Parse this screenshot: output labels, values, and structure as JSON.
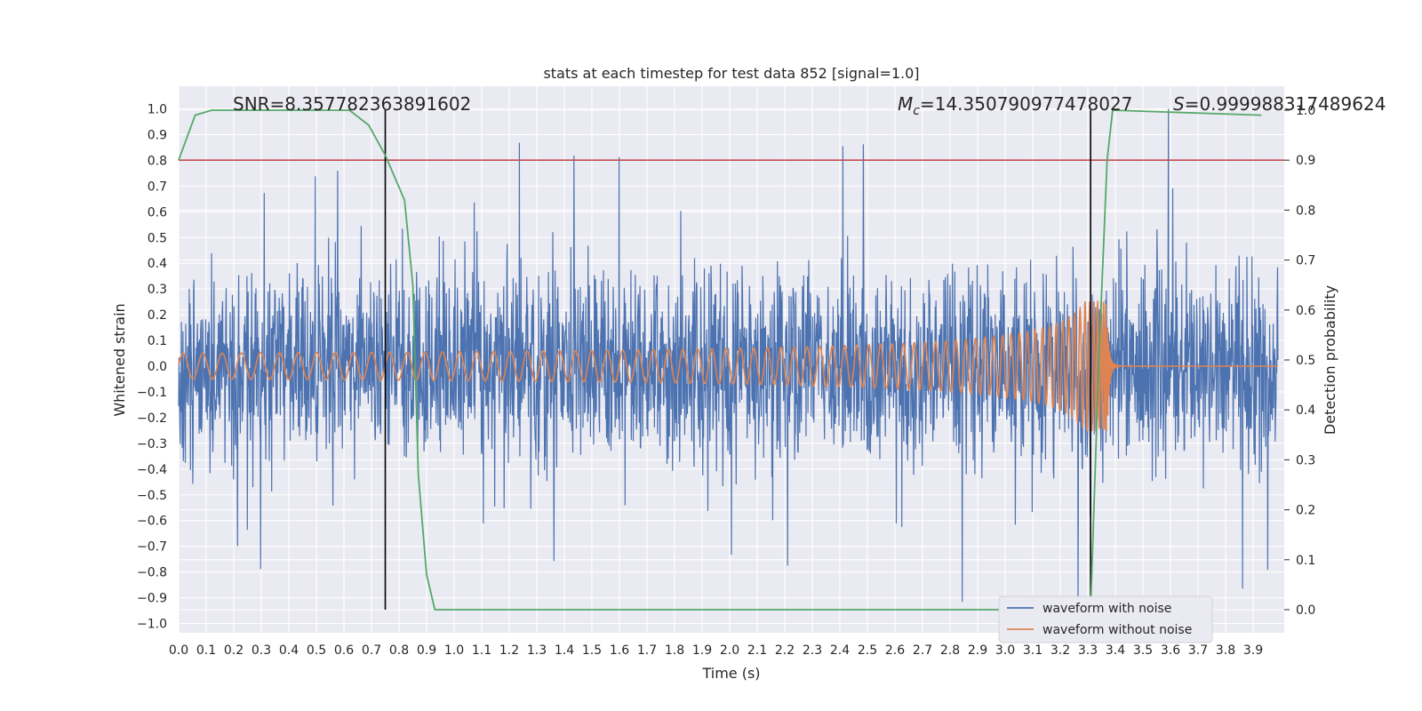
{
  "chart_data": {
    "type": "line",
    "title": "stats at each timestep for test data 852 [signal=1.0]",
    "xlabel": "Time (s)",
    "ylabel": "Whitened strain",
    "ylabel_right": "Detection probability",
    "xlim": [
      0.0,
      4.0
    ],
    "ylim": [
      -1.08,
      1.1
    ],
    "ylim_right": [
      -0.05,
      1.05
    ],
    "x_ticks": [
      "0.0",
      "0.1",
      "0.2",
      "0.3",
      "0.4",
      "0.5",
      "0.6",
      "0.7",
      "0.8",
      "0.9",
      "1.0",
      "1.1",
      "1.2",
      "1.3",
      "1.4",
      "1.5",
      "1.6",
      "1.7",
      "1.8",
      "1.9",
      "2.0",
      "2.1",
      "2.2",
      "2.3",
      "2.4",
      "2.5",
      "2.6",
      "2.7",
      "2.8",
      "2.9",
      "3.0",
      "3.1",
      "3.2",
      "3.3",
      "3.4",
      "3.5",
      "3.6",
      "3.7",
      "3.8",
      "3.9"
    ],
    "y_ticks": [
      "1.0",
      "0.9",
      "0.8",
      "0.7",
      "0.6",
      "0.5",
      "0.4",
      "0.3",
      "0.2",
      "0.1",
      "0.0",
      "−0.1",
      "−0.2",
      "−0.3",
      "−0.4",
      "−0.5",
      "−0.6",
      "−0.7",
      "−0.8",
      "−0.9",
      "−1.0"
    ],
    "y_right_ticks": [
      "1.0",
      "0.9",
      "0.8",
      "0.7",
      "0.6",
      "0.5",
      "0.4",
      "0.3",
      "0.2",
      "0.1",
      "0.0"
    ],
    "grid": true,
    "legend_position": "lower-right",
    "annotations": {
      "snr": "SNR=8.357782363891602",
      "mc": "=14.350790977478027",
      "mc_symbol": "M",
      "mc_sub": "c",
      "s": "=0.999988317489624",
      "s_symbol": "S"
    },
    "series": [
      {
        "name": "waveform with noise",
        "color": "#4c72b0",
        "kind": "noise",
        "axis": "left",
        "approx_range": [
          -0.95,
          1.0
        ]
      },
      {
        "name": "waveform without noise",
        "color": "#dd8452",
        "kind": "chirp",
        "axis": "left",
        "merger_time": 3.37,
        "amplitude_start": 0.02,
        "amplitude_peak": 0.28
      }
    ],
    "detection_probability": {
      "color": "#55a868",
      "axis": "right",
      "x": [
        0.0,
        0.06,
        0.12,
        0.62,
        0.69,
        0.75,
        0.82,
        0.85,
        0.87,
        0.9,
        0.93,
        3.31,
        3.34,
        3.37,
        3.39,
        3.93
      ],
      "y": [
        0.9,
        0.99,
        1.0,
        1.0,
        0.97,
        0.91,
        0.82,
        0.65,
        0.27,
        0.07,
        0.0,
        0.0,
        0.5,
        0.9,
        1.0,
        0.99
      ]
    },
    "threshold": {
      "value": 0.9,
      "axis": "right",
      "color": "#c44e52"
    },
    "vertical_lines": [
      0.75,
      3.31
    ],
    "vertical_line_color": "#000000"
  }
}
